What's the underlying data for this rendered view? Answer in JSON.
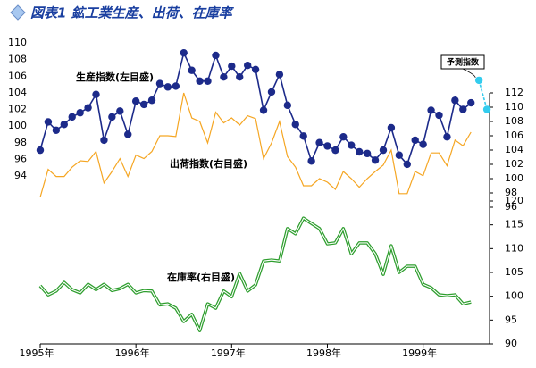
{
  "chart_data": [
    {
      "type": "line",
      "title": "図表1 鉱工業生産、出荷、在庫率",
      "ylim": [
        94,
        110
      ],
      "yticks": [
        94,
        96,
        98,
        100,
        102,
        104,
        106,
        108,
        110
      ],
      "y2lim": [
        96,
        112
      ],
      "y2ticks": [
        96,
        98,
        100,
        102,
        104,
        106,
        108,
        110,
        112
      ],
      "series": [
        {
          "name": "生産指数(左目盛)",
          "color": "#1c2a8a",
          "marker": "circle",
          "values": [
            97.1,
            100.5,
            99.5,
            100.2,
            101.1,
            101.6,
            102.2,
            103.8,
            98.3,
            101.1,
            101.8,
            99.0,
            103.0,
            102.6,
            103.1,
            105.1,
            104.7,
            104.8,
            108.8,
            106.7,
            105.4,
            105.4,
            108.5,
            105.9,
            107.2,
            105.9,
            107.3,
            106.8,
            101.9,
            104.1,
            106.2,
            102.5,
            100.2,
            98.8,
            95.8,
            98.0,
            97.6,
            97.1,
            98.7,
            97.7,
            96.9,
            96.7,
            95.9,
            97.1,
            99.8,
            96.5,
            95.4,
            98.3,
            97.8,
            101.9,
            101.3,
            98.7,
            103.1,
            102.0,
            102.8,
            null,
            null
          ]
        },
        {
          "name": "出荷指数(右目盛)",
          "color": "#f5a623",
          "axis": "y2",
          "values": [
            97.4,
            101.3,
            100.3,
            100.3,
            101.6,
            102.5,
            102.4,
            103.8,
            99.4,
            101.0,
            102.8,
            100.3,
            103.3,
            102.8,
            103.8,
            106.0,
            106.0,
            105.9,
            112.0,
            108.5,
            108.0,
            105.0,
            109.3,
            107.8,
            108.5,
            107.5,
            108.8,
            108.4,
            102.8,
            105.0,
            108.0,
            103.1,
            101.6,
            99.0,
            99.0,
            100.0,
            99.5,
            98.5,
            101.0,
            100.0,
            98.8,
            100.0,
            101.0,
            101.9,
            104.0,
            97.9,
            97.9,
            101.0,
            100.4,
            103.6,
            103.6,
            101.8,
            105.4,
            104.6,
            106.5,
            null,
            null
          ]
        },
        {
          "name": "在庫率(右目盛)",
          "color": "#2e9e2e",
          "skip": true,
          "values": []
        },
        {
          "name": "予測指数",
          "color": "#33ccee",
          "marker": "circle",
          "dash": true,
          "values": [
            null,
            null,
            null,
            null,
            null,
            null,
            null,
            null,
            null,
            null,
            null,
            null,
            null,
            null,
            null,
            null,
            null,
            null,
            null,
            null,
            null,
            null,
            null,
            null,
            null,
            null,
            null,
            null,
            null,
            null,
            null,
            null,
            null,
            null,
            null,
            null,
            null,
            null,
            null,
            null,
            null,
            null,
            null,
            null,
            null,
            null,
            null,
            null,
            null,
            null,
            null,
            null,
            null,
            null,
            null,
            105.5,
            102.0
          ]
        }
      ]
    },
    {
      "type": "line",
      "categories": [
        "1995年",
        null,
        null,
        null,
        null,
        null,
        null,
        null,
        null,
        null,
        null,
        null,
        "1996年",
        null,
        null,
        null,
        null,
        null,
        null,
        null,
        null,
        null,
        null,
        null,
        "1997年",
        null,
        null,
        null,
        null,
        null,
        null,
        null,
        null,
        null,
        null,
        null,
        "1998年",
        null,
        null,
        null,
        null,
        null,
        null,
        null,
        null,
        null,
        null,
        null,
        "1999年",
        null,
        null,
        null,
        null,
        null,
        null,
        null,
        null
      ],
      "y2lim": [
        90,
        120
      ],
      "y2ticks": [
        90,
        95,
        100,
        105,
        110,
        115,
        120
      ],
      "series": [
        {
          "name": "在庫率(右目盛)",
          "color": "#2e9e2e",
          "axis": "y2",
          "double": true,
          "values": [
            102.2,
            100.3,
            101.1,
            102.9,
            101.4,
            100.7,
            102.5,
            101.4,
            102.5,
            101.2,
            101.6,
            102.5,
            100.7,
            101.2,
            101.1,
            98.2,
            98.4,
            97.5,
            94.7,
            96.2,
            92.8,
            98.4,
            97.5,
            101.1,
            99.9,
            104.8,
            101.1,
            102.4,
            107.4,
            107.6,
            107.4,
            114.2,
            113.1,
            116.4,
            115.3,
            114.2,
            111.0,
            111.2,
            114.2,
            108.9,
            111.2,
            111.2,
            108.9,
            104.6,
            110.6,
            105.0,
            106.3,
            106.3,
            102.5,
            101.8,
            100.3,
            100.1,
            100.3,
            98.4,
            98.8,
            null,
            null
          ]
        }
      ]
    }
  ]
}
